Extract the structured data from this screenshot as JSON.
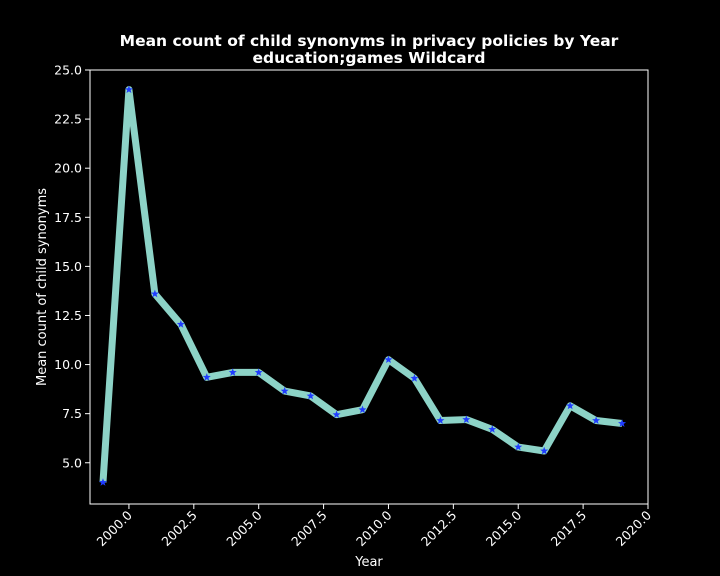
{
  "chart_data": {
    "type": "line",
    "title": "Mean count of child synonyms in privacy policies by Year",
    "subtitle": "education;games Wildcard",
    "xlabel": "Year",
    "ylabel": "Mean count of child synonyms",
    "xlim": [
      1998.5,
      2020.0
    ],
    "ylim": [
      2.9,
      25.0
    ],
    "xticks": [
      "2000.0",
      "2002.5",
      "2005.0",
      "2007.5",
      "2010.0",
      "2012.5",
      "2015.0",
      "2017.5",
      "2020.0"
    ],
    "xtick_values": [
      2000.0,
      2002.5,
      2005.0,
      2007.5,
      2010.0,
      2012.5,
      2015.0,
      2017.5,
      2020.0
    ],
    "yticks": [
      "5.0",
      "7.5",
      "10.0",
      "12.5",
      "15.0",
      "17.5",
      "20.0",
      "22.5",
      "25.0"
    ],
    "ytick_values": [
      5.0,
      7.5,
      10.0,
      12.5,
      15.0,
      17.5,
      20.0,
      22.5,
      25.0
    ],
    "grid": false,
    "background": "#000000",
    "series": [
      {
        "line_color": "#8dd3c7",
        "marker": "star",
        "marker_color": "#1f3cff",
        "x": [
          1999,
          2000,
          2001,
          2002,
          2003,
          2004,
          2005,
          2006,
          2007,
          2008,
          2009,
          2010,
          2011,
          2012,
          2013,
          2014,
          2015,
          2016,
          2017,
          2018,
          2019
        ],
        "y": [
          4.0,
          24.0,
          13.6,
          12.05,
          9.35,
          9.6,
          9.6,
          8.65,
          8.4,
          7.45,
          7.7,
          10.25,
          9.3,
          7.15,
          7.2,
          6.7,
          5.8,
          5.6,
          7.9,
          7.15,
          7.0
        ]
      }
    ]
  }
}
